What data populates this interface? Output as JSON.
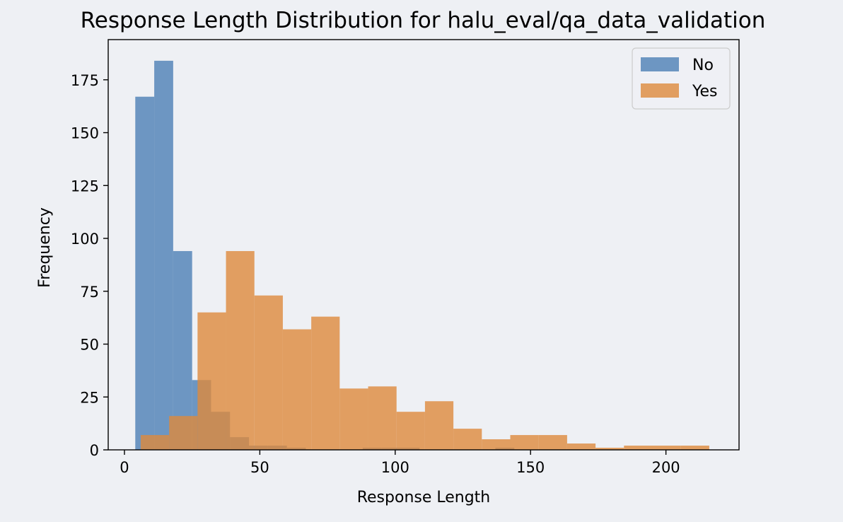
{
  "chart_data": {
    "type": "histogram",
    "title": "Response Length Distribution for halu_eval/qa_data_validation",
    "xlabel": "Response Length",
    "ylabel": "Frequency",
    "xlim": [
      -6,
      227
    ],
    "ylim": [
      0,
      194
    ],
    "xticks": [
      0,
      50,
      100,
      150,
      200
    ],
    "yticks": [
      0,
      25,
      50,
      75,
      100,
      125,
      150,
      175
    ],
    "grid": false,
    "legend_position": "top-right",
    "opacity": 0.8,
    "series": [
      {
        "name": "No",
        "color": "#4c7fb5",
        "bins": [
          {
            "x0": 4,
            "x1": 11,
            "value": 167
          },
          {
            "x0": 11,
            "x1": 18,
            "value": 184
          },
          {
            "x0": 18,
            "x1": 25,
            "value": 94
          },
          {
            "x0": 25,
            "x1": 32,
            "value": 33
          },
          {
            "x0": 32,
            "x1": 39,
            "value": 18
          },
          {
            "x0": 39,
            "x1": 46,
            "value": 6
          },
          {
            "x0": 46,
            "x1": 53,
            "value": 2
          },
          {
            "x0": 53,
            "x1": 60,
            "value": 2
          },
          {
            "x0": 60,
            "x1": 67,
            "value": 1
          },
          {
            "x0": 88,
            "x1": 95,
            "value": 1
          },
          {
            "x0": 95,
            "x1": 102,
            "value": 1
          },
          {
            "x0": 102,
            "x1": 109,
            "value": 1
          },
          {
            "x0": 137,
            "x1": 144,
            "value": 1
          }
        ]
      },
      {
        "name": "Yes",
        "color": "#dd8a3c",
        "bins": [
          {
            "x0": 6,
            "x1": 16.5,
            "value": 7
          },
          {
            "x0": 16.5,
            "x1": 27,
            "value": 16
          },
          {
            "x0": 27,
            "x1": 37.5,
            "value": 65
          },
          {
            "x0": 37.5,
            "x1": 48,
            "value": 94
          },
          {
            "x0": 48,
            "x1": 58.5,
            "value": 73
          },
          {
            "x0": 58.5,
            "x1": 69,
            "value": 57
          },
          {
            "x0": 69,
            "x1": 79.5,
            "value": 63
          },
          {
            "x0": 79.5,
            "x1": 90,
            "value": 29
          },
          {
            "x0": 90,
            "x1": 100.5,
            "value": 30
          },
          {
            "x0": 100.5,
            "x1": 111,
            "value": 18
          },
          {
            "x0": 111,
            "x1": 121.5,
            "value": 23
          },
          {
            "x0": 121.5,
            "x1": 132,
            "value": 10
          },
          {
            "x0": 132,
            "x1": 142.5,
            "value": 5
          },
          {
            "x0": 142.5,
            "x1": 153,
            "value": 7
          },
          {
            "x0": 153,
            "x1": 163.5,
            "value": 7
          },
          {
            "x0": 163.5,
            "x1": 174,
            "value": 3
          },
          {
            "x0": 174,
            "x1": 184.5,
            "value": 1
          },
          {
            "x0": 184.5,
            "x1": 195,
            "value": 2
          },
          {
            "x0": 195,
            "x1": 205.5,
            "value": 2
          },
          {
            "x0": 205.5,
            "x1": 216,
            "value": 2
          }
        ]
      }
    ]
  }
}
